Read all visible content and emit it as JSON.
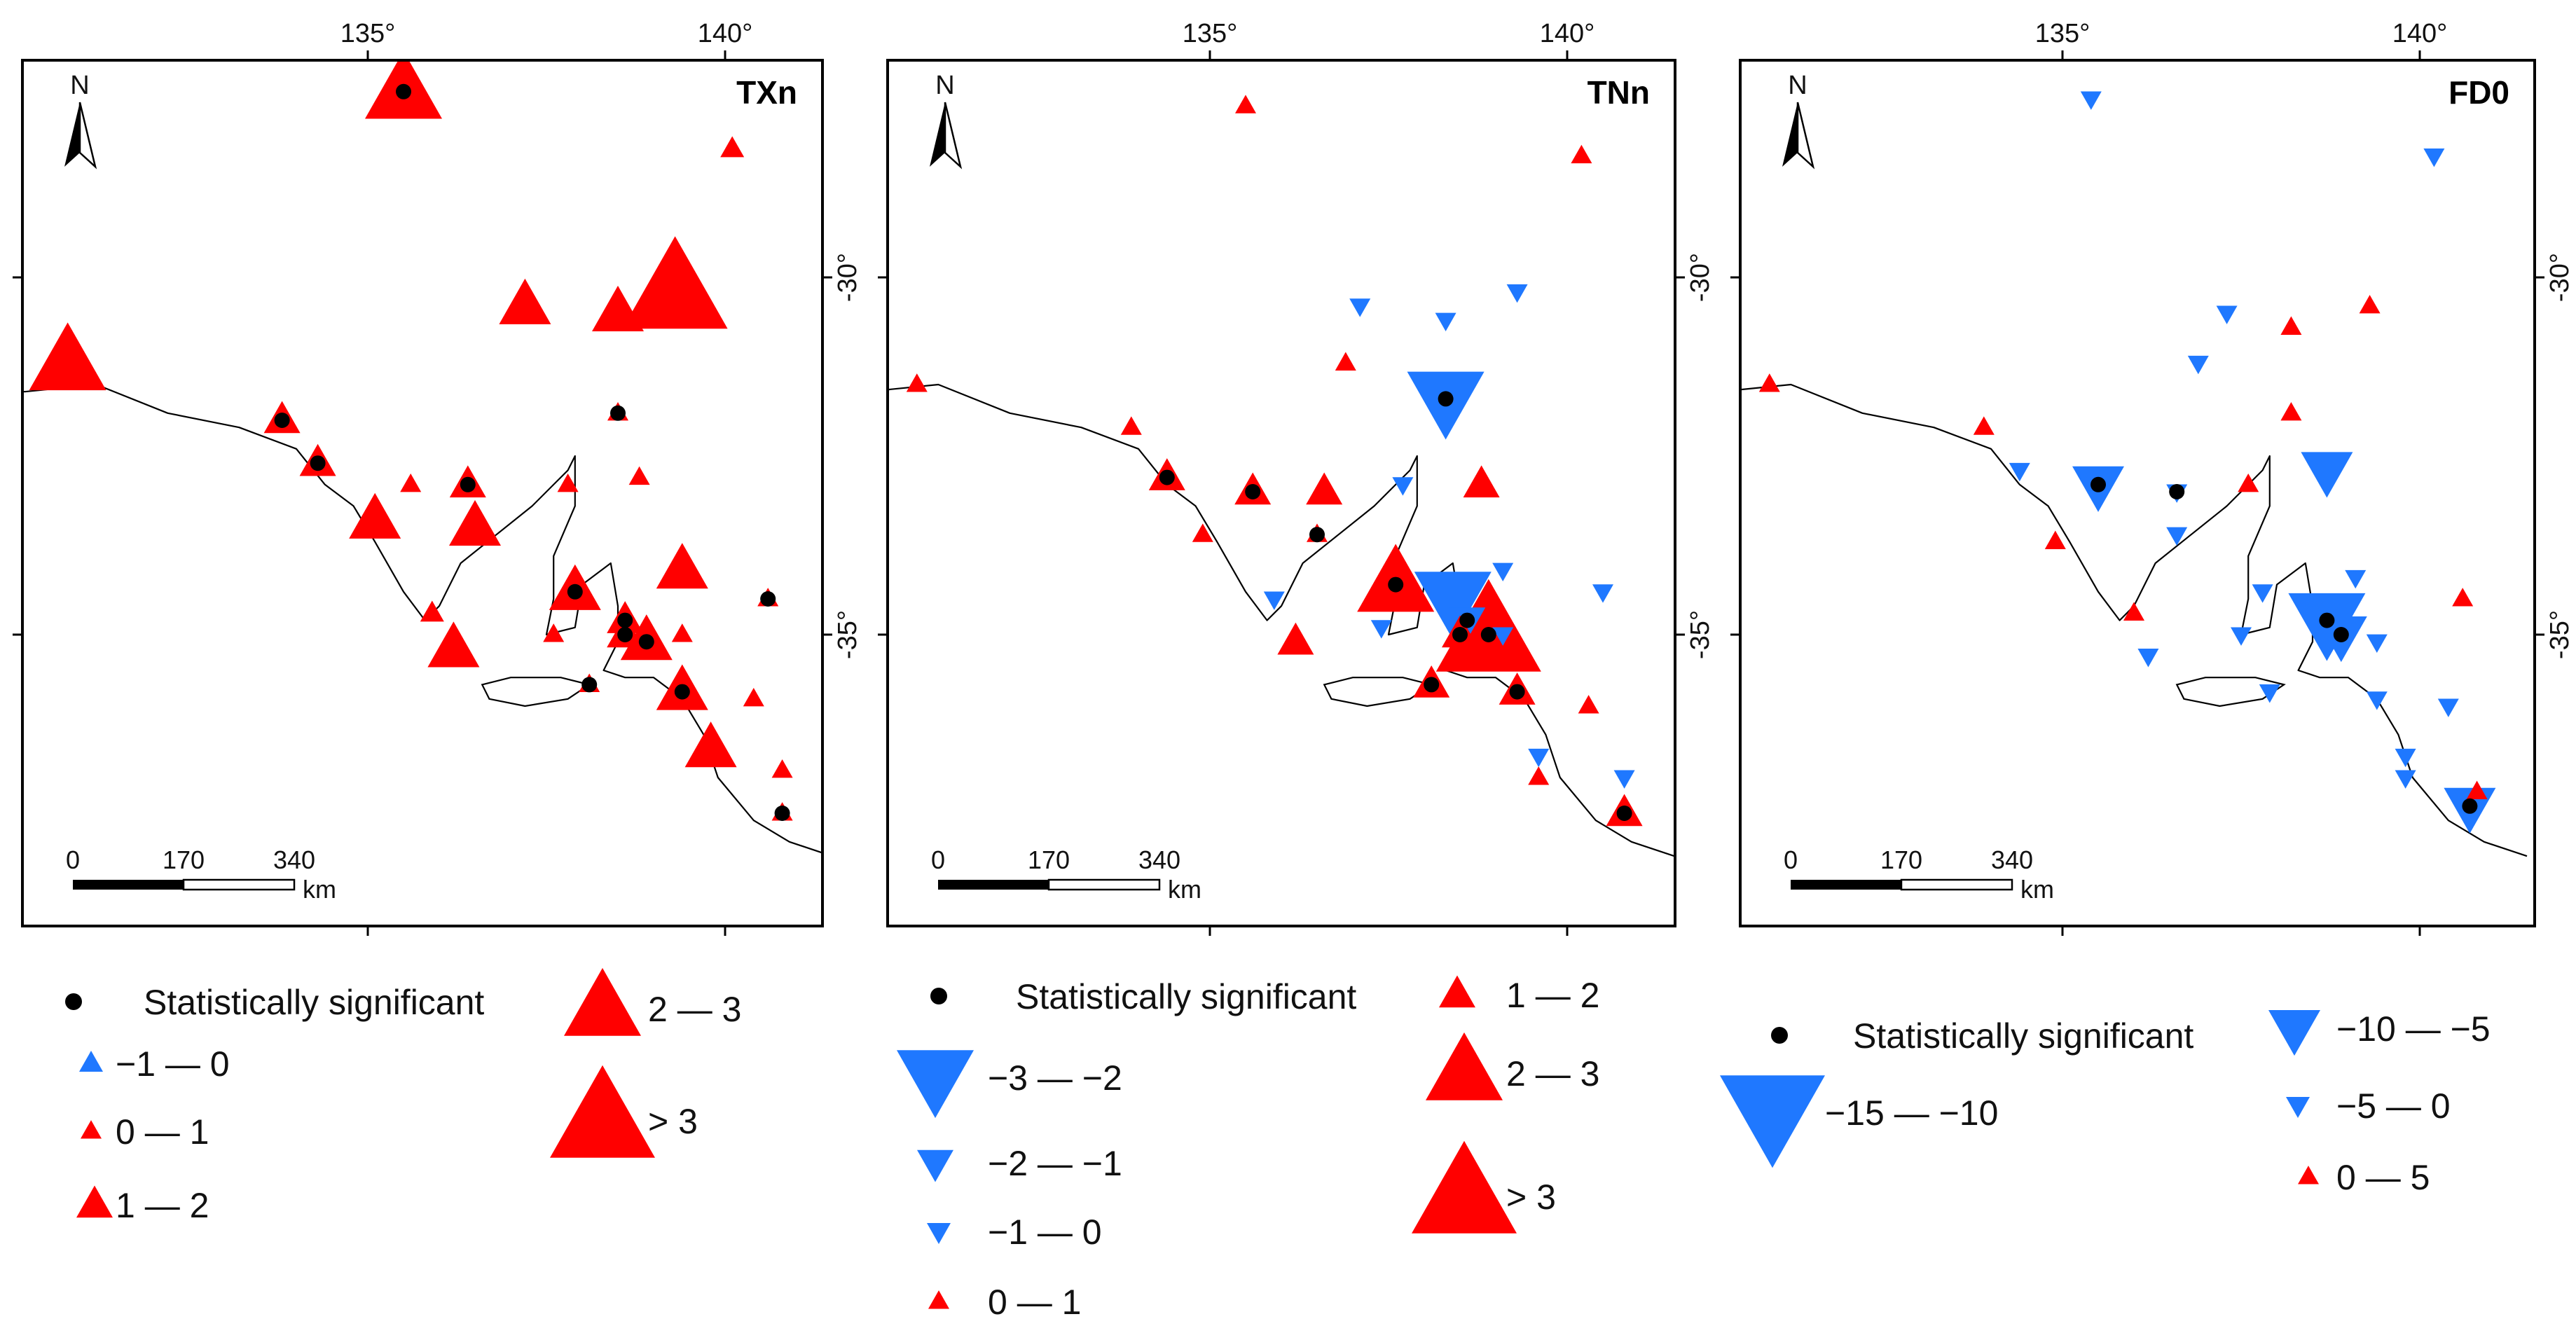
{
  "colors": {
    "positive": "#ff0000",
    "negative": "#1f78ff",
    "significant": "#000000"
  },
  "map_common": {
    "north_label": "N",
    "lon_ticks": [
      "135°",
      "140°"
    ],
    "lat_ticks": [
      "-30°",
      "-35°"
    ],
    "scale": {
      "labels": [
        "0",
        "170",
        "340"
      ],
      "unit": "km"
    }
  },
  "panels": [
    {
      "id": "txn",
      "title": "TXn",
      "stations": [
        {
          "lon": 135.5,
          "lat": -27.4,
          "sym": "up",
          "cls": 4,
          "sig": true
        },
        {
          "lon": 140.1,
          "lat": -28.2,
          "sym": "up",
          "cls": 0,
          "sig": false
        },
        {
          "lon": 139.3,
          "lat": -30.2,
          "sym": "up",
          "cls": 5,
          "sig": false
        },
        {
          "lon": 138.5,
          "lat": -30.5,
          "sym": "up",
          "cls": 3,
          "sig": false
        },
        {
          "lon": 137.2,
          "lat": -30.4,
          "sym": "up",
          "cls": 3,
          "sig": false
        },
        {
          "lon": 130.8,
          "lat": -31.2,
          "sym": "up",
          "cls": 4,
          "sig": false
        },
        {
          "lon": 138.5,
          "lat": -31.9,
          "sym": "up",
          "cls": 1,
          "sig": true
        },
        {
          "lon": 133.8,
          "lat": -32.0,
          "sym": "up",
          "cls": 2,
          "sig": true
        },
        {
          "lon": 134.3,
          "lat": -32.6,
          "sym": "up",
          "cls": 2,
          "sig": true
        },
        {
          "lon": 135.1,
          "lat": -33.4,
          "sym": "up",
          "cls": 3,
          "sig": false
        },
        {
          "lon": 135.6,
          "lat": -32.9,
          "sym": "up",
          "cls": 1,
          "sig": false
        },
        {
          "lon": 136.4,
          "lat": -32.9,
          "sym": "up",
          "cls": 2,
          "sig": true
        },
        {
          "lon": 136.5,
          "lat": -33.5,
          "sym": "up",
          "cls": 3,
          "sig": false
        },
        {
          "lon": 137.8,
          "lat": -32.9,
          "sym": "up",
          "cls": 1,
          "sig": false
        },
        {
          "lon": 138.8,
          "lat": -32.8,
          "sym": "up",
          "cls": 1,
          "sig": false
        },
        {
          "lon": 139.4,
          "lat": -34.1,
          "sym": "up",
          "cls": 3,
          "sig": false
        },
        {
          "lon": 135.9,
          "lat": -34.7,
          "sym": "up",
          "cls": 0,
          "sig": false
        },
        {
          "lon": 136.2,
          "lat": -35.2,
          "sym": "up",
          "cls": 3,
          "sig": false
        },
        {
          "lon": 137.6,
          "lat": -35.0,
          "sym": "up",
          "cls": 1,
          "sig": false
        },
        {
          "lon": 137.9,
          "lat": -34.4,
          "sym": "up",
          "cls": 3,
          "sig": true
        },
        {
          "lon": 138.6,
          "lat": -34.8,
          "sym": "up",
          "cls": 2,
          "sig": true
        },
        {
          "lon": 138.6,
          "lat": -35.0,
          "sym": "up",
          "cls": 2,
          "sig": true
        },
        {
          "lon": 138.9,
          "lat": -35.1,
          "sym": "up",
          "cls": 3,
          "sig": true
        },
        {
          "lon": 139.4,
          "lat": -35.0,
          "sym": "up",
          "cls": 1,
          "sig": false
        },
        {
          "lon": 140.6,
          "lat": -34.5,
          "sym": "up",
          "cls": 1,
          "sig": true
        },
        {
          "lon": 138.1,
          "lat": -35.7,
          "sym": "up",
          "cls": 1,
          "sig": true
        },
        {
          "lon": 139.4,
          "lat": -35.8,
          "sym": "up",
          "cls": 3,
          "sig": true
        },
        {
          "lon": 140.4,
          "lat": -35.9,
          "sym": "up",
          "cls": 1,
          "sig": false
        },
        {
          "lon": 139.8,
          "lat": -36.6,
          "sym": "up",
          "cls": 3,
          "sig": false
        },
        {
          "lon": 140.8,
          "lat": -36.9,
          "sym": "up",
          "cls": 1,
          "sig": false
        },
        {
          "lon": 140.8,
          "lat": -37.5,
          "sym": "up",
          "cls": 1,
          "sig": true
        }
      ],
      "legend": [
        {
          "key": "sig",
          "label": "Statistically significant"
        },
        {
          "key": "neg0",
          "label": "−1 — 0"
        },
        {
          "key": "pos1",
          "label": "0 — 1"
        },
        {
          "key": "pos2",
          "label": "1 — 2"
        },
        {
          "key": "pos4",
          "label": "2 — 3"
        },
        {
          "key": "pos5",
          "label": "> 3"
        }
      ]
    },
    {
      "id": "tnn",
      "title": "TNn",
      "stations": [
        {
          "lon": 135.5,
          "lat": -27.6,
          "sym": "up",
          "cls": 1,
          "sig": false
        },
        {
          "lon": 140.2,
          "lat": -28.3,
          "sym": "up",
          "cls": 1,
          "sig": false
        },
        {
          "lon": 137.1,
          "lat": -30.4,
          "sym": "dn",
          "cls": 1,
          "sig": false
        },
        {
          "lon": 138.3,
          "lat": -30.6,
          "sym": "dn",
          "cls": 1,
          "sig": false
        },
        {
          "lon": 139.3,
          "lat": -30.2,
          "sym": "dn",
          "cls": 1,
          "sig": false
        },
        {
          "lon": 136.9,
          "lat": -31.2,
          "sym": "up",
          "cls": 1,
          "sig": false
        },
        {
          "lon": 138.3,
          "lat": -31.7,
          "sym": "dn",
          "cls": 4,
          "sig": true
        },
        {
          "lon": 130.9,
          "lat": -31.5,
          "sym": "up",
          "cls": 1,
          "sig": false
        },
        {
          "lon": 133.9,
          "lat": -32.1,
          "sym": "up",
          "cls": 1,
          "sig": false
        },
        {
          "lon": 134.4,
          "lat": -32.8,
          "sym": "up",
          "cls": 2,
          "sig": true
        },
        {
          "lon": 134.9,
          "lat": -33.6,
          "sym": "up",
          "cls": 1,
          "sig": false
        },
        {
          "lon": 135.6,
          "lat": -33.0,
          "sym": "up",
          "cls": 2,
          "sig": true
        },
        {
          "lon": 136.5,
          "lat": -33.6,
          "sym": "up",
          "cls": 1,
          "sig": true
        },
        {
          "lon": 136.6,
          "lat": -33.0,
          "sym": "up",
          "cls": 2,
          "sig": false
        },
        {
          "lon": 137.7,
          "lat": -32.9,
          "sym": "dn",
          "cls": 1,
          "sig": false
        },
        {
          "lon": 138.8,
          "lat": -32.9,
          "sym": "up",
          "cls": 2,
          "sig": false
        },
        {
          "lon": 135.9,
          "lat": -34.5,
          "sym": "dn",
          "cls": 1,
          "sig": false
        },
        {
          "lon": 136.2,
          "lat": -35.1,
          "sym": "up",
          "cls": 2,
          "sig": false
        },
        {
          "lon": 137.6,
          "lat": -34.3,
          "sym": "up",
          "cls": 4,
          "sig": true
        },
        {
          "lon": 137.4,
          "lat": -34.9,
          "sym": "dn",
          "cls": 1,
          "sig": false
        },
        {
          "lon": 138.4,
          "lat": -34.5,
          "sym": "dn",
          "cls": 4,
          "sig": false
        },
        {
          "lon": 138.6,
          "lat": -34.8,
          "sym": "dn",
          "cls": 2,
          "sig": true
        },
        {
          "lon": 138.5,
          "lat": -35.0,
          "sym": "up",
          "cls": 2,
          "sig": true
        },
        {
          "lon": 138.9,
          "lat": -35.0,
          "sym": "up",
          "cls": 5,
          "sig": true
        },
        {
          "lon": 139.1,
          "lat": -34.1,
          "sym": "dn",
          "cls": 1,
          "sig": false
        },
        {
          "lon": 139.1,
          "lat": -35.0,
          "sym": "dn",
          "cls": 1,
          "sig": false
        },
        {
          "lon": 140.5,
          "lat": -34.4,
          "sym": "dn",
          "cls": 1,
          "sig": false
        },
        {
          "lon": 138.1,
          "lat": -35.7,
          "sym": "up",
          "cls": 2,
          "sig": true
        },
        {
          "lon": 139.3,
          "lat": -35.8,
          "sym": "up",
          "cls": 2,
          "sig": true
        },
        {
          "lon": 140.3,
          "lat": -36.0,
          "sym": "up",
          "cls": 1,
          "sig": false
        },
        {
          "lon": 139.6,
          "lat": -36.7,
          "sym": "dn",
          "cls": 1,
          "sig": false
        },
        {
          "lon": 139.6,
          "lat": -37.0,
          "sym": "up",
          "cls": 1,
          "sig": false
        },
        {
          "lon": 140.8,
          "lat": -37.0,
          "sym": "dn",
          "cls": 1,
          "sig": false
        },
        {
          "lon": 140.8,
          "lat": -37.5,
          "sym": "up",
          "cls": 2,
          "sig": true
        }
      ],
      "legend": [
        {
          "key": "sig",
          "label": "Statistically significant"
        },
        {
          "key": "neg4",
          "label": "−3 — −2"
        },
        {
          "key": "neg2",
          "label": "−2 — −1"
        },
        {
          "key": "neg0",
          "label": "−1 — 0"
        },
        {
          "key": "pos1",
          "label": "0 — 1"
        },
        {
          "key": "pos2",
          "label": "1 — 2"
        },
        {
          "key": "pos4",
          "label": "2 — 3"
        },
        {
          "key": "pos5",
          "label": "> 3"
        }
      ]
    },
    {
      "id": "fd0",
      "title": "FD0",
      "stations": [
        {
          "lon": 135.4,
          "lat": -27.5,
          "sym": "dn",
          "cls": 1,
          "sig": false
        },
        {
          "lon": 140.2,
          "lat": -28.3,
          "sym": "dn",
          "cls": 1,
          "sig": false
        },
        {
          "lon": 137.3,
          "lat": -30.5,
          "sym": "dn",
          "cls": 1,
          "sig": false
        },
        {
          "lon": 136.9,
          "lat": -31.2,
          "sym": "dn",
          "cls": 1,
          "sig": false
        },
        {
          "lon": 138.2,
          "lat": -30.7,
          "sym": "up",
          "cls": 1,
          "sig": false
        },
        {
          "lon": 139.3,
          "lat": -30.4,
          "sym": "up",
          "cls": 1,
          "sig": false
        },
        {
          "lon": 130.9,
          "lat": -31.5,
          "sym": "up",
          "cls": 1,
          "sig": false
        },
        {
          "lon": 133.9,
          "lat": -32.1,
          "sym": "up",
          "cls": 1,
          "sig": false
        },
        {
          "lon": 138.2,
          "lat": -31.9,
          "sym": "up",
          "cls": 1,
          "sig": false
        },
        {
          "lon": 134.4,
          "lat": -32.7,
          "sym": "dn",
          "cls": 1,
          "sig": false
        },
        {
          "lon": 135.5,
          "lat": -32.9,
          "sym": "dn",
          "cls": 3,
          "sig": true
        },
        {
          "lon": 136.6,
          "lat": -33.0,
          "sym": "dn",
          "cls": 1,
          "sig": true
        },
        {
          "lon": 137.6,
          "lat": -32.9,
          "sym": "up",
          "cls": 1,
          "sig": false
        },
        {
          "lon": 138.7,
          "lat": -32.7,
          "sym": "dn",
          "cls": 3,
          "sig": false
        },
        {
          "lon": 136.6,
          "lat": -33.6,
          "sym": "dn",
          "cls": 1,
          "sig": false
        },
        {
          "lon": 134.9,
          "lat": -33.7,
          "sym": "up",
          "cls": 1,
          "sig": false
        },
        {
          "lon": 136.0,
          "lat": -34.7,
          "sym": "up",
          "cls": 1,
          "sig": false
        },
        {
          "lon": 136.2,
          "lat": -35.3,
          "sym": "dn",
          "cls": 1,
          "sig": false
        },
        {
          "lon": 137.8,
          "lat": -34.4,
          "sym": "dn",
          "cls": 1,
          "sig": false
        },
        {
          "lon": 139.1,
          "lat": -34.2,
          "sym": "dn",
          "cls": 1,
          "sig": false
        },
        {
          "lon": 138.7,
          "lat": -34.8,
          "sym": "dn",
          "cls": 4,
          "sig": true
        },
        {
          "lon": 138.9,
          "lat": -35.0,
          "sym": "dn",
          "cls": 3,
          "sig": true
        },
        {
          "lon": 137.5,
          "lat": -35.0,
          "sym": "dn",
          "cls": 1,
          "sig": false
        },
        {
          "lon": 139.4,
          "lat": -35.1,
          "sym": "dn",
          "cls": 1,
          "sig": false
        },
        {
          "lon": 137.9,
          "lat": -35.8,
          "sym": "dn",
          "cls": 1,
          "sig": false
        },
        {
          "lon": 139.4,
          "lat": -35.9,
          "sym": "dn",
          "cls": 1,
          "sig": false
        },
        {
          "lon": 140.4,
          "lat": -36.0,
          "sym": "dn",
          "cls": 1,
          "sig": false
        },
        {
          "lon": 140.6,
          "lat": -34.5,
          "sym": "up",
          "cls": 1,
          "sig": false
        },
        {
          "lon": 139.8,
          "lat": -36.7,
          "sym": "dn",
          "cls": 1,
          "sig": false
        },
        {
          "lon": 139.8,
          "lat": -37.0,
          "sym": "dn",
          "cls": 1,
          "sig": false
        },
        {
          "lon": 140.8,
          "lat": -37.2,
          "sym": "up",
          "cls": 1,
          "sig": false
        },
        {
          "lon": 140.7,
          "lat": -37.4,
          "sym": "dn",
          "cls": 3,
          "sig": true
        }
      ],
      "legend": [
        {
          "key": "sig",
          "label": "Statistically significant"
        },
        {
          "key": "neg5",
          "label": "−15 — −10"
        },
        {
          "key": "neg3",
          "label": "−10 — −5"
        },
        {
          "key": "neg0",
          "label": "−5 — 0"
        },
        {
          "key": "pos1",
          "label": "0 — 5"
        }
      ]
    }
  ]
}
